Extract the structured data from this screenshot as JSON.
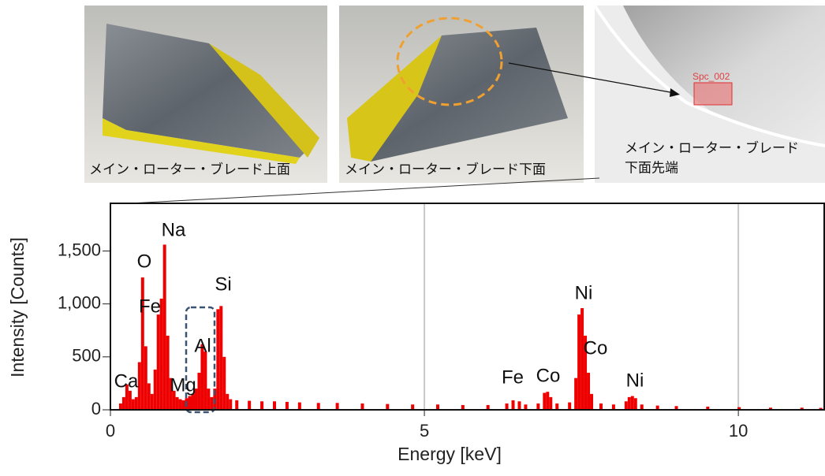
{
  "photos": [
    {
      "caption": "メイン・ローター・ブレード上面"
    },
    {
      "caption": "メイン・ローター・ブレード下面"
    },
    {
      "caption": [
        "メイン・ローター・ブレード",
        "下面先端"
      ],
      "region_label": "Spc_002"
    }
  ],
  "chart_data": {
    "type": "spectrum",
    "xlabel": "Energy [keV]",
    "ylabel": "Intensity [Counts]",
    "xlim": [
      0,
      11.38
    ],
    "ylim": [
      0,
      1950
    ],
    "xticks": [
      0,
      5,
      10
    ],
    "yticks": [
      0,
      500,
      {
        "value": 1000,
        "label": "1,000"
      },
      {
        "value": 1500,
        "label": "1,500"
      }
    ],
    "grid": "x",
    "color": "#ee0000",
    "x": [
      0.15,
      0.2,
      0.25,
      0.3,
      0.35,
      0.4,
      0.45,
      0.5,
      0.55,
      0.6,
      0.65,
      0.7,
      0.75,
      0.8,
      0.85,
      0.9,
      0.95,
      1.0,
      1.05,
      1.1,
      1.15,
      1.2,
      1.25,
      1.3,
      1.35,
      1.4,
      1.45,
      1.5,
      1.55,
      1.6,
      1.65,
      1.7,
      1.75,
      1.8,
      1.85,
      1.9,
      2.0,
      2.2,
      2.4,
      2.6,
      2.8,
      3.0,
      3.3,
      3.6,
      4.0,
      4.4,
      4.8,
      5.2,
      5.6,
      6.0,
      6.3,
      6.4,
      6.5,
      6.6,
      6.8,
      6.9,
      6.95,
      7.0,
      7.1,
      7.3,
      7.4,
      7.45,
      7.5,
      7.55,
      7.6,
      7.65,
      7.8,
      8.0,
      8.2,
      8.25,
      8.3,
      8.35,
      8.45,
      8.7,
      9.0,
      9.5,
      10.0,
      10.5,
      11.0,
      11.3
    ],
    "values": [
      60,
      120,
      240,
      180,
      100,
      120,
      450,
      1250,
      600,
      250,
      150,
      380,
      900,
      1050,
      1560,
      700,
      300,
      180,
      120,
      100,
      90,
      110,
      130,
      150,
      200,
      350,
      620,
      550,
      200,
      120,
      200,
      950,
      980,
      500,
      150,
      100,
      90,
      85,
      80,
      80,
      75,
      70,
      65,
      65,
      60,
      55,
      50,
      50,
      45,
      45,
      60,
      90,
      80,
      50,
      60,
      160,
      170,
      120,
      60,
      70,
      300,
      900,
      960,
      700,
      350,
      150,
      60,
      50,
      80,
      120,
      130,
      110,
      50,
      40,
      35,
      30,
      25,
      20,
      20,
      18
    ],
    "annotations": [
      "Ca",
      "O",
      "Fe",
      "Na",
      "Mg",
      "Al",
      "Si",
      "Fe",
      "Co",
      "Ni",
      "Co",
      "Ni"
    ]
  }
}
